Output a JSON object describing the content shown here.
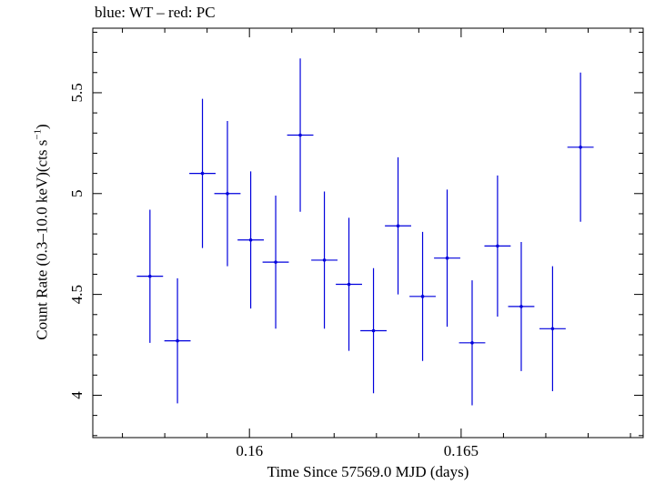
{
  "chart_data": {
    "type": "scatter",
    "title": "blue: WT – red: PC",
    "xlabel": "Time Since 57569.0 MJD (days)",
    "ylabel_main": "Count Rate (0.3–10.0 keV)(cts s",
    "ylabel_sup": "−1",
    "ylabel_end": ")",
    "xlim": [
      0.1563,
      0.1693
    ],
    "ylim": [
      3.79,
      5.82
    ],
    "x_ticks": [
      {
        "value": 0.16,
        "label": "0.16"
      },
      {
        "value": 0.165,
        "label": "0.165"
      }
    ],
    "y_ticks": [
      {
        "value": 4,
        "label": "4"
      },
      {
        "value": 4.5,
        "label": "4.5"
      },
      {
        "value": 5,
        "label": "5"
      },
      {
        "value": 5.5,
        "label": "5.5"
      }
    ],
    "x_minor_step": 0.001,
    "y_minor_step": 0.1,
    "series": [
      {
        "color": "#0000dd",
        "points": [
          {
            "x": 0.15765,
            "xerr": 0.00031,
            "y": 4.59,
            "yerr": 0.33
          },
          {
            "x": 0.1583,
            "xerr": 0.00031,
            "y": 4.27,
            "yerr": 0.31
          },
          {
            "x": 0.15889,
            "xerr": 0.00031,
            "y": 5.1,
            "yerr": 0.37
          },
          {
            "x": 0.15948,
            "xerr": 0.00031,
            "y": 5.0,
            "yerr": 0.36
          },
          {
            "x": 0.16003,
            "xerr": 0.00031,
            "y": 4.77,
            "yerr": 0.34
          },
          {
            "x": 0.16062,
            "xerr": 0.00031,
            "y": 4.66,
            "yerr": 0.33
          },
          {
            "x": 0.1612,
            "xerr": 0.00031,
            "y": 5.29,
            "yerr": 0.38
          },
          {
            "x": 0.16177,
            "xerr": 0.00031,
            "y": 4.67,
            "yerr": 0.34
          },
          {
            "x": 0.16235,
            "xerr": 0.00031,
            "y": 4.55,
            "yerr": 0.33
          },
          {
            "x": 0.16293,
            "xerr": 0.00031,
            "y": 4.32,
            "yerr": 0.31
          },
          {
            "x": 0.16351,
            "xerr": 0.00031,
            "y": 4.84,
            "yerr": 0.34
          },
          {
            "x": 0.16409,
            "xerr": 0.00031,
            "y": 4.49,
            "yerr": 0.32
          },
          {
            "x": 0.16467,
            "xerr": 0.00031,
            "y": 4.68,
            "yerr": 0.34
          },
          {
            "x": 0.16526,
            "xerr": 0.00031,
            "y": 4.26,
            "yerr": 0.31
          },
          {
            "x": 0.16586,
            "xerr": 0.00031,
            "y": 4.74,
            "yerr": 0.35
          },
          {
            "x": 0.16642,
            "xerr": 0.00031,
            "y": 4.44,
            "yerr": 0.32
          },
          {
            "x": 0.16716,
            "xerr": 0.00031,
            "y": 4.33,
            "yerr": 0.31
          },
          {
            "x": 0.16782,
            "xerr": 0.00031,
            "y": 5.23,
            "yerr": 0.37
          }
        ]
      }
    ]
  }
}
